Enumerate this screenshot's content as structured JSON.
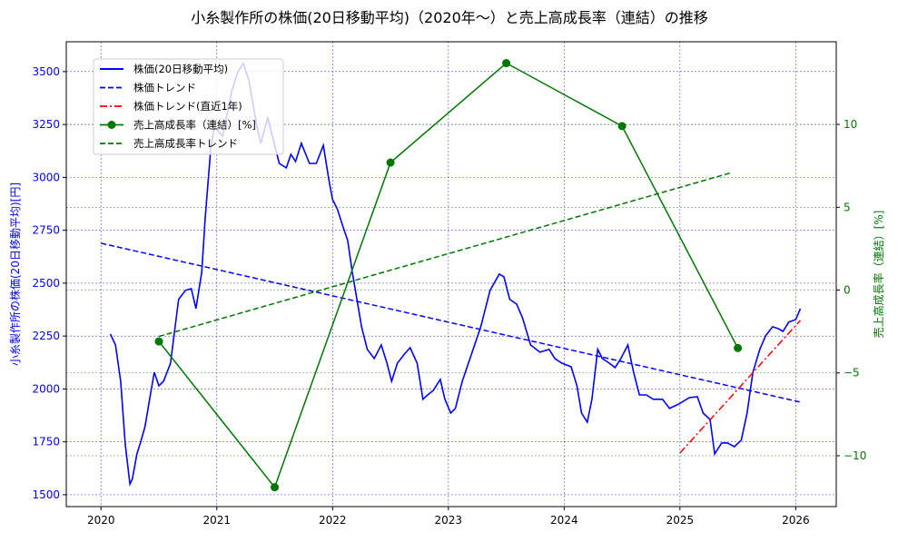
{
  "chart_data": {
    "type": "line",
    "title": "小糸製作所の株価(20日移動平均)（2020年〜）と売上高成長率（連結）の推移",
    "xlabel": "",
    "ylabel_left": "小糸製作所の株価(20日移動平均)[円]",
    "ylabel_right": "売上高成長率（連結）[%]",
    "xlim": [
      2019.7,
      2026.35
    ],
    "ylim_left": [
      1444,
      3641
    ],
    "ylim_right": [
      -13.07,
      14.99
    ],
    "x_ticks": [
      2020,
      2021,
      2022,
      2023,
      2024,
      2025,
      2026
    ],
    "y_left_ticks": [
      1500,
      1750,
      2000,
      2250,
      2500,
      2750,
      3000,
      3250,
      3500
    ],
    "y_right_ticks": [
      -10,
      -5,
      0,
      5,
      10
    ],
    "grid": true,
    "legend_position": "top-left",
    "colors": {
      "price": "#0000ff",
      "price_trend": "#0000ff",
      "recent_trend": "#ff0000",
      "growth": "#007700",
      "growth_trend": "#007700",
      "left_axis": "#0000ff",
      "right_axis": "#007700"
    },
    "series": [
      {
        "name": "株価(20日移動平均)",
        "axis": "left",
        "style": "solid",
        "x": [
          2020.08,
          2020.125,
          2020.17,
          2020.21,
          2020.25,
          2020.27,
          2020.31,
          2020.34,
          2020.38,
          2020.42,
          2020.46,
          2020.5,
          2020.54,
          2020.6,
          2020.67,
          2020.73,
          2020.78,
          2020.82,
          2020.87,
          2020.9,
          2020.95,
          2020.98,
          2021.05,
          2021.13,
          2021.18,
          2021.23,
          2021.28,
          2021.34,
          2021.38,
          2021.44,
          2021.5,
          2021.54,
          2021.6,
          2021.64,
          2021.68,
          2021.73,
          2021.8,
          2021.86,
          2021.92,
          2021.97,
          2022.0,
          2022.04,
          2022.09,
          2022.13,
          2022.17,
          2022.21,
          2022.25,
          2022.3,
          2022.36,
          2022.42,
          2022.47,
          2022.51,
          2022.56,
          2022.62,
          2022.67,
          2022.73,
          2022.78,
          2022.82,
          2022.87,
          2022.93,
          2022.97,
          2023.02,
          2023.06,
          2023.12,
          2023.2,
          2023.28,
          2023.36,
          2023.44,
          2023.48,
          2023.53,
          2023.59,
          2023.64,
          2023.71,
          2023.79,
          2023.87,
          2023.92,
          2023.98,
          2024.06,
          2024.11,
          2024.15,
          2024.2,
          2024.24,
          2024.29,
          2024.33,
          2024.39,
          2024.44,
          2024.49,
          2024.55,
          2024.6,
          2024.65,
          2024.71,
          2024.77,
          2024.85,
          2024.91,
          2024.99,
          2025.08,
          2025.15,
          2025.2,
          2025.26,
          2025.3,
          2025.36,
          2025.41,
          2025.47,
          2025.53,
          2025.58,
          2025.63,
          2025.69,
          2025.74,
          2025.8,
          2025.85,
          2025.89,
          2025.94,
          2026.0,
          2026.04
        ],
        "values": [
          2260,
          2208,
          2036,
          1736,
          1551,
          1573,
          1693,
          1745,
          1822,
          1951,
          2079,
          2015,
          2036,
          2122,
          2423,
          2466,
          2474,
          2380,
          2552,
          2809,
          3152,
          3238,
          3195,
          3410,
          3496,
          3539,
          3453,
          3260,
          3161,
          3281,
          3152,
          3066,
          3045,
          3109,
          3075,
          3161,
          3066,
          3066,
          3152,
          2981,
          2895,
          2852,
          2766,
          2702,
          2552,
          2423,
          2294,
          2187,
          2144,
          2208,
          2122,
          2036,
          2122,
          2165,
          2195,
          2122,
          1951,
          1972,
          1993,
          2045,
          1951,
          1886,
          1908,
          2036,
          2165,
          2294,
          2466,
          2543,
          2530,
          2423,
          2401,
          2337,
          2208,
          2174,
          2187,
          2144,
          2122,
          2105,
          2015,
          1886,
          1843,
          1951,
          2187,
          2144,
          2122,
          2101,
          2144,
          2208,
          2079,
          1972,
          1972,
          1951,
          1951,
          1908,
          1929,
          1959,
          1963,
          1886,
          1856,
          1693,
          1745,
          1745,
          1727,
          1758,
          1886,
          2079,
          2187,
          2251,
          2294,
          2285,
          2272,
          2316,
          2328,
          2380
        ]
      },
      {
        "name": "株価トレンド",
        "axis": "left",
        "style": "dashed",
        "x": [
          2020.0,
          2026.04
        ],
        "values": [
          2689,
          1938
        ]
      },
      {
        "name": "株価トレンド(直近1年)",
        "axis": "left",
        "style": "dashdot",
        "x": [
          2025.0,
          2026.04
        ],
        "values": [
          1697,
          2324
        ]
      },
      {
        "name": "売上高成長率（連結）[%]",
        "axis": "right",
        "style": "solid-marker",
        "x": [
          2020.5,
          2021.5,
          2022.5,
          2023.5,
          2024.5,
          2025.5
        ],
        "values": [
          -3.1,
          -11.9,
          7.7,
          13.7,
          9.9,
          -3.5
        ]
      },
      {
        "name": "売上高成長率トレンド",
        "axis": "right",
        "style": "dashed",
        "x": [
          2020.5,
          2025.45
        ],
        "values": [
          -2.8,
          7.1
        ]
      }
    ]
  }
}
